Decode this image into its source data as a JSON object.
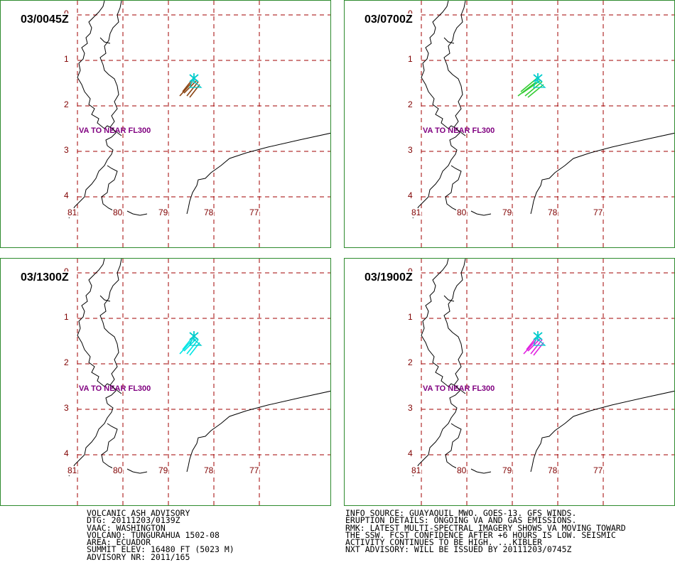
{
  "panels": [
    {
      "time": "03/0045Z",
      "color": "#8b4513",
      "va_label": "VA TO NEAR FL300"
    },
    {
      "time": "03/0700Z",
      "color": "#33cc33",
      "va_label": "VA TO NEAR FL300"
    },
    {
      "time": "03/1300Z",
      "color": "#00e5e5",
      "va_label": "VA TO NEAR FL300"
    },
    {
      "time": "03/1900Z",
      "color": "#e020e0",
      "va_label": "VA TO NEAR FL300"
    }
  ],
  "map": {
    "lat_labels": [
      "0",
      "1",
      "2",
      "3",
      "4"
    ],
    "lon_labels": [
      "81",
      "80",
      "79",
      "78",
      "77"
    ],
    "volcano_marker_color": "#00cccc"
  },
  "advisory_left": [
    "VOLCANIC ASH ADVISORY",
    "DTG: 20111203/0139Z",
    "VAAC: WASHINGTON",
    "VOLCANO: TUNGURAHUA 1502-08",
    "AREA: ECUADOR",
    "SUMMIT ELEV: 16480 FT (5023 M)",
    "ADVISORY NR: 2011/165"
  ],
  "advisory_right": [
    "INFO SOURCE: GUAYAQUIL MWO. GOES-13. GFS WINDS.",
    "ERUPTION DETAILS: ONGOING VA AND GAS EMISSIONS.",
    "RMK: LATEST MULTI-SPECTRAL IMAGERY SHOWS VA MOVING TOWARD",
    "THE SSW. FCST CONFIDENCE AFTER +6 HOURS IS LOW. SEISMIC",
    "ACTIVITY CONTINUES TO BE HIGH. ...KIBLER",
    "NXT ADVISORY: WILL BE ISSUED BY 20111203/0745Z"
  ]
}
